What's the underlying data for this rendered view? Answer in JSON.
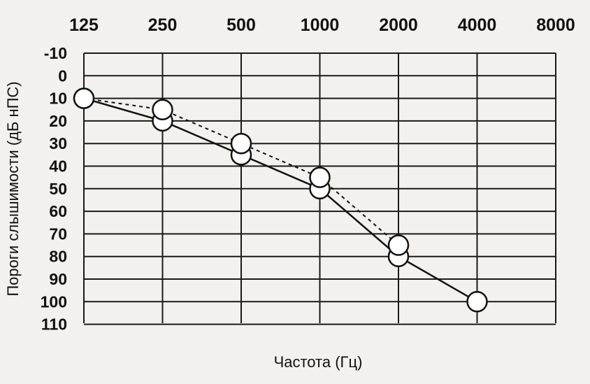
{
  "chart_data": {
    "type": "line",
    "title": "",
    "xlabel": "Частота (Гц)",
    "ylabel": "Пороги слышимости (дБ нПС)",
    "categories": [
      "125",
      "250",
      "500",
      "1000",
      "2000",
      "4000",
      "8000"
    ],
    "yticks": [
      "-10",
      "0",
      "10",
      "20",
      "30",
      "40",
      "50",
      "60",
      "70",
      "80",
      "90",
      "100",
      "110"
    ],
    "ylim": [
      -10,
      110
    ],
    "y_inverted": true,
    "x_axis_position": "top",
    "grid": true,
    "legend": "none",
    "series": [
      {
        "line_style": "solid",
        "values": [
          10,
          20,
          35,
          50,
          80,
          100,
          null
        ]
      },
      {
        "line_style": "dashed",
        "values": [
          10,
          15,
          30,
          45,
          75,
          null,
          null
        ]
      }
    ]
  }
}
